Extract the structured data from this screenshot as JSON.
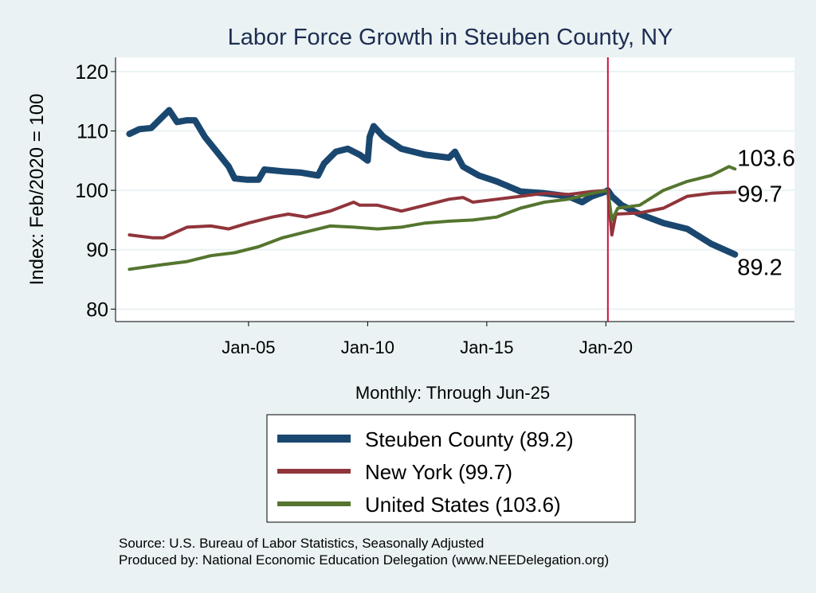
{
  "chart_data": {
    "type": "line",
    "title": "Labor Force Growth in Steuben  County, NY",
    "xlabel": "Monthly: Through Jun-25",
    "ylabel": "Index: Feb/2020 = 100",
    "x_ticks": [
      {
        "date": "2005-01",
        "label": "Jan-05"
      },
      {
        "date": "2010-01",
        "label": "Jan-10"
      },
      {
        "date": "2015-01",
        "label": "Jan-15"
      },
      {
        "date": "2020-01",
        "label": "Jan-20"
      }
    ],
    "y_ticks": [
      80,
      90,
      100,
      110,
      120
    ],
    "ylim": [
      77.9,
      122.4
    ],
    "xlim": [
      "1999-06",
      "2027-12"
    ],
    "grid": true,
    "reference_line": {
      "date": "2020-02",
      "color": "#c8143c"
    },
    "legend_placement": "bottom",
    "series": [
      {
        "name": "Steuben  County (89.2)",
        "end_label": "89.2",
        "color": "#1a476f",
        "data": [
          [
            "2000-01",
            109.5
          ],
          [
            "2000-06",
            110.3
          ],
          [
            "2000-12",
            110.5
          ],
          [
            "2001-06",
            112.5
          ],
          [
            "2001-09",
            113.5
          ],
          [
            "2002-01",
            111.5
          ],
          [
            "2002-06",
            111.8
          ],
          [
            "2002-10",
            111.8
          ],
          [
            "2003-03",
            109
          ],
          [
            "2003-09",
            106.5
          ],
          [
            "2004-03",
            104
          ],
          [
            "2004-06",
            102
          ],
          [
            "2004-12",
            101.8
          ],
          [
            "2005-06",
            101.8
          ],
          [
            "2005-09",
            103.5
          ],
          [
            "2006-06",
            103.2
          ],
          [
            "2007-03",
            103
          ],
          [
            "2007-12",
            102.5
          ],
          [
            "2008-03",
            104.5
          ],
          [
            "2008-09",
            106.5
          ],
          [
            "2009-03",
            107
          ],
          [
            "2009-09",
            106
          ],
          [
            "2010-01",
            105
          ],
          [
            "2010-02",
            109
          ],
          [
            "2010-04",
            110.8
          ],
          [
            "2010-09",
            109
          ],
          [
            "2011-06",
            107
          ],
          [
            "2012-06",
            106
          ],
          [
            "2013-06",
            105.5
          ],
          [
            "2013-09",
            106.5
          ],
          [
            "2014-01",
            104
          ],
          [
            "2014-09",
            102.5
          ],
          [
            "2015-06",
            101.5
          ],
          [
            "2016-06",
            99.8
          ],
          [
            "2017-06",
            99.5
          ],
          [
            "2018-06",
            99
          ],
          [
            "2019-01",
            98
          ],
          [
            "2019-06",
            99
          ],
          [
            "2020-01",
            99.8
          ],
          [
            "2020-02",
            100
          ],
          [
            "2020-04",
            99
          ],
          [
            "2020-09",
            97.5
          ],
          [
            "2021-06",
            96
          ],
          [
            "2022-06",
            94.5
          ],
          [
            "2023-06",
            93.5
          ],
          [
            "2024-06",
            91
          ],
          [
            "2025-06",
            89.2
          ]
        ]
      },
      {
        "name": "New York (99.7)",
        "end_label": "99.7",
        "color": "#90353b",
        "data": [
          [
            "2000-01",
            92.5
          ],
          [
            "2001-01",
            92.0
          ],
          [
            "2001-06",
            92.0
          ],
          [
            "2002-06",
            93.8
          ],
          [
            "2003-06",
            94
          ],
          [
            "2004-03",
            93.5
          ],
          [
            "2005-01",
            94.5
          ],
          [
            "2006-01",
            95.5
          ],
          [
            "2006-09",
            96
          ],
          [
            "2007-06",
            95.5
          ],
          [
            "2008-06",
            96.5
          ],
          [
            "2009-06",
            98
          ],
          [
            "2009-09",
            97.5
          ],
          [
            "2010-06",
            97.5
          ],
          [
            "2011-06",
            96.5
          ],
          [
            "2012-06",
            97.5
          ],
          [
            "2013-06",
            98.5
          ],
          [
            "2014-01",
            98.8
          ],
          [
            "2014-06",
            98
          ],
          [
            "2015-06",
            98.5
          ],
          [
            "2016-06",
            99
          ],
          [
            "2017-06",
            99.5
          ],
          [
            "2018-06",
            99.3
          ],
          [
            "2019-06",
            99.8
          ],
          [
            "2020-02",
            100
          ],
          [
            "2020-04",
            92.5
          ],
          [
            "2020-06",
            96
          ],
          [
            "2021-06",
            96.2
          ],
          [
            "2022-06",
            97
          ],
          [
            "2023-06",
            99
          ],
          [
            "2024-06",
            99.5
          ],
          [
            "2025-06",
            99.7
          ]
        ]
      },
      {
        "name": "United States (103.6)",
        "end_label": "103.6",
        "color": "#55752f",
        "data": [
          [
            "2000-01",
            86.7
          ],
          [
            "2001-06",
            87.5
          ],
          [
            "2002-06",
            88
          ],
          [
            "2003-06",
            89
          ],
          [
            "2004-06",
            89.5
          ],
          [
            "2005-06",
            90.5
          ],
          [
            "2006-06",
            92
          ],
          [
            "2007-06",
            93
          ],
          [
            "2008-06",
            94
          ],
          [
            "2009-06",
            93.8
          ],
          [
            "2010-06",
            93.5
          ],
          [
            "2011-06",
            93.8
          ],
          [
            "2012-06",
            94.5
          ],
          [
            "2013-06",
            94.8
          ],
          [
            "2014-06",
            95
          ],
          [
            "2015-06",
            95.5
          ],
          [
            "2016-06",
            97
          ],
          [
            "2017-06",
            98
          ],
          [
            "2018-06",
            98.5
          ],
          [
            "2019-06",
            99.5
          ],
          [
            "2020-02",
            100
          ],
          [
            "2020-04",
            95
          ],
          [
            "2020-07",
            97
          ],
          [
            "2021-06",
            97.5
          ],
          [
            "2022-06",
            100
          ],
          [
            "2023-06",
            101.5
          ],
          [
            "2024-06",
            102.5
          ],
          [
            "2025-03",
            104
          ],
          [
            "2025-06",
            103.6
          ]
        ]
      }
    ]
  },
  "notes": {
    "source": "Source: U.S. Bureau of Labor Statistics, Seasonally Adjusted",
    "produced_by": "Produced by: National Economic Education Delegation (www.NEEDelegation.org)"
  }
}
